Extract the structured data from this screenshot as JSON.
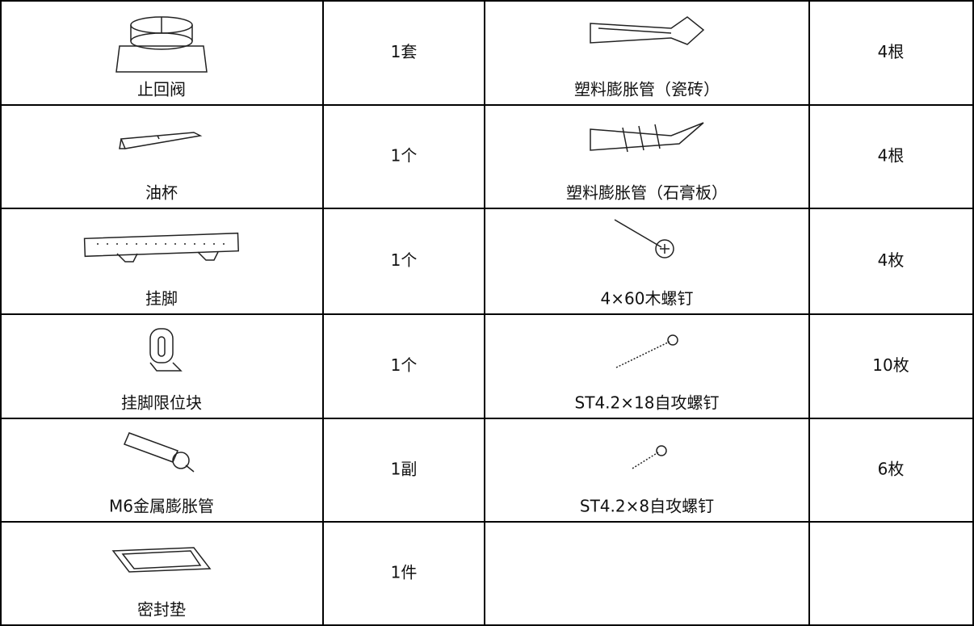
{
  "table": {
    "rows": [
      [
        {
          "name": "止回阀",
          "quantity": "1套"
        },
        {
          "name": "塑料膨胀管（瓷砖）",
          "quantity": "4根"
        }
      ],
      [
        {
          "name": "油杯",
          "quantity": "1个"
        },
        {
          "name": "塑料膨胀管（石膏板）",
          "quantity": "4根"
        }
      ],
      [
        {
          "name": "挂脚",
          "quantity": "1个"
        },
        {
          "name": "4×60木螺钉",
          "quantity": "4枚"
        }
      ],
      [
        {
          "name": "挂脚限位块",
          "quantity": "1个"
        },
        {
          "name": "ST4.2×18自攻螺钉",
          "quantity": "10枚"
        }
      ],
      [
        {
          "name": "M6金属膨胀管",
          "quantity": "1副"
        },
        {
          "name": "ST4.2×8自攻螺钉",
          "quantity": "6枚"
        }
      ],
      [
        {
          "name": "密封垫",
          "quantity": "1件"
        }
      ]
    ]
  }
}
